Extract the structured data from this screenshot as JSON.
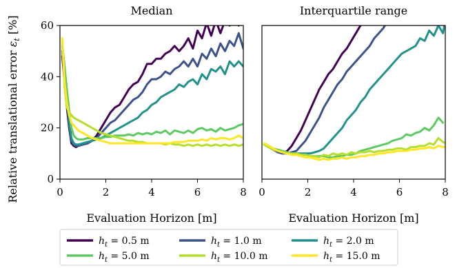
{
  "chart_data": [
    {
      "type": "line",
      "title": "Median",
      "xlabel": "Evaluation Horizon [m]",
      "ylabel": "Relative translational error ε_t [%]",
      "xlim": [
        0,
        8
      ],
      "ylim": [
        0,
        60
      ],
      "xticks": [
        "0",
        "2",
        "4",
        "6",
        "8"
      ],
      "yticks": [
        "0",
        "20",
        "40",
        "60"
      ],
      "series": [
        {
          "name": "h_t = 0.5 m",
          "color": "#440154",
          "x": [
            0.1,
            0.2,
            0.3,
            0.4,
            0.5,
            0.6,
            0.7,
            0.8,
            1.0,
            1.2,
            1.4,
            1.6,
            1.8,
            2.0,
            2.2,
            2.4,
            2.6,
            2.8,
            3.0,
            3.2,
            3.4,
            3.6,
            3.8,
            4.0,
            4.2,
            4.4,
            4.6,
            4.8,
            5.0,
            5.2,
            5.4,
            5.6,
            5.8,
            6.0,
            6.2,
            6.4,
            6.6,
            6.8,
            7.0,
            7.2,
            7.4,
            7.6,
            7.8,
            8.0
          ],
          "y": [
            48,
            38,
            28,
            20,
            14,
            13,
            12.5,
            13,
            13.5,
            14,
            15,
            17,
            20,
            23,
            26,
            28,
            29,
            32,
            35,
            37,
            38,
            41,
            45,
            45,
            47,
            47,
            49,
            50,
            52,
            50,
            52,
            55,
            51,
            58,
            55,
            61,
            56,
            62,
            57,
            62,
            60,
            62,
            60,
            63
          ]
        },
        {
          "name": "h_t = 1.0 m",
          "color": "#3b528b",
          "x": [
            0.1,
            0.2,
            0.3,
            0.4,
            0.5,
            0.6,
            0.7,
            0.8,
            1.0,
            1.2,
            1.4,
            1.6,
            1.8,
            2.0,
            2.2,
            2.4,
            2.6,
            2.8,
            3.0,
            3.2,
            3.4,
            3.6,
            3.8,
            4.0,
            4.2,
            4.4,
            4.6,
            4.8,
            5.0,
            5.2,
            5.4,
            5.6,
            5.8,
            6.0,
            6.2,
            6.4,
            6.6,
            6.8,
            7.0,
            7.2,
            7.4,
            7.6,
            7.8,
            8.0
          ],
          "y": [
            50,
            40,
            30,
            21,
            15,
            13.5,
            13,
            13,
            13.5,
            14,
            15,
            16,
            18,
            20,
            22,
            23,
            25,
            27,
            29,
            31,
            32,
            34,
            37,
            39,
            39,
            40,
            42,
            41,
            43,
            44,
            46,
            44,
            47,
            44,
            49,
            47,
            51,
            48,
            53,
            50,
            54,
            52,
            57,
            51
          ]
        },
        {
          "name": "h_t = 2.0 m",
          "color": "#21918c",
          "x": [
            0.1,
            0.2,
            0.3,
            0.4,
            0.5,
            0.6,
            0.7,
            0.8,
            1.0,
            1.2,
            1.4,
            1.6,
            1.8,
            2.0,
            2.2,
            2.4,
            2.6,
            2.8,
            3.0,
            3.2,
            3.4,
            3.6,
            3.8,
            4.0,
            4.2,
            4.4,
            4.6,
            4.8,
            5.0,
            5.2,
            5.4,
            5.6,
            5.8,
            6.0,
            6.2,
            6.4,
            6.6,
            6.8,
            7.0,
            7.2,
            7.4,
            7.6,
            7.8,
            8.0
          ],
          "y": [
            52,
            42,
            32,
            23,
            16,
            14,
            13.5,
            13.5,
            14,
            14.5,
            15,
            15.5,
            16,
            17,
            18,
            19,
            20,
            21,
            22,
            23,
            24,
            26,
            27,
            29,
            30,
            32,
            33,
            34,
            35,
            37,
            36,
            38,
            39,
            37,
            41,
            39,
            43,
            42,
            44,
            41,
            46,
            44,
            46,
            44
          ]
        },
        {
          "name": "h_t = 5.0 m",
          "color": "#5ec962",
          "x": [
            0.1,
            0.2,
            0.3,
            0.4,
            0.5,
            0.6,
            0.7,
            0.8,
            1.0,
            1.2,
            1.4,
            1.6,
            1.8,
            2.0,
            2.2,
            2.4,
            2.6,
            2.8,
            3.0,
            3.2,
            3.4,
            3.6,
            3.8,
            4.0,
            4.2,
            4.4,
            4.6,
            4.8,
            5.0,
            5.2,
            5.4,
            5.6,
            5.8,
            6.0,
            6.2,
            6.4,
            6.6,
            6.8,
            7.0,
            7.2,
            7.4,
            7.6,
            7.8,
            8.0
          ],
          "y": [
            53,
            44,
            35,
            27,
            20,
            17,
            16,
            15.5,
            15.5,
            16,
            16,
            16,
            16,
            16.5,
            16.5,
            17,
            17,
            17,
            17.5,
            17,
            18,
            17.5,
            18,
            17.5,
            18.5,
            18,
            19,
            17.5,
            19,
            18.5,
            18,
            19,
            18,
            19.5,
            20,
            19,
            19.5,
            18.5,
            20,
            19,
            19.5,
            20,
            21,
            21.5
          ]
        },
        {
          "name": "h_t = 10.0 m",
          "color": "#b5de2b",
          "x": [
            0.1,
            0.2,
            0.3,
            0.4,
            0.5,
            0.6,
            0.7,
            0.8,
            1.0,
            1.2,
            1.4,
            1.6,
            1.8,
            2.0,
            2.2,
            2.4,
            2.6,
            2.8,
            3.0,
            3.2,
            3.4,
            3.6,
            3.8,
            4.0,
            4.2,
            4.4,
            4.6,
            4.8,
            5.0,
            5.2,
            5.4,
            5.6,
            5.8,
            6.0,
            6.2,
            6.4,
            6.6,
            6.8,
            7.0,
            7.2,
            7.4,
            7.6,
            7.8,
            8.0
          ],
          "y": [
            54,
            36,
            28,
            26,
            25,
            24,
            23.5,
            23,
            22,
            21,
            20,
            19,
            18,
            17.5,
            17,
            16.5,
            16,
            15.5,
            15,
            15,
            14.5,
            14.5,
            14,
            14,
            14,
            14,
            13.5,
            14,
            13.5,
            13.5,
            13,
            13.5,
            13,
            13.5,
            13,
            13.5,
            13,
            13.5,
            13,
            13.5,
            13,
            13.5,
            13,
            13.5
          ]
        },
        {
          "name": "h_t = 15.0 m",
          "color": "#fde725",
          "x": [
            0.1,
            0.2,
            0.3,
            0.4,
            0.5,
            0.6,
            0.7,
            0.8,
            1.0,
            1.2,
            1.4,
            1.6,
            1.8,
            2.0,
            2.2,
            2.4,
            2.6,
            2.8,
            3.0,
            3.2,
            3.4,
            3.6,
            3.8,
            4.0,
            4.2,
            4.4,
            4.6,
            4.8,
            5.0,
            5.2,
            5.4,
            5.6,
            5.8,
            6.0,
            6.2,
            6.4,
            6.6,
            6.8,
            7.0,
            7.2,
            7.4,
            7.6,
            7.8,
            8.0
          ],
          "y": [
            55,
            38,
            30,
            25,
            22,
            21,
            20,
            19,
            18,
            17,
            16,
            15.5,
            15,
            14.5,
            14,
            14,
            14,
            14,
            14,
            14,
            14,
            14,
            14,
            14,
            14,
            14,
            14,
            14,
            14.5,
            14.5,
            14.5,
            15,
            15,
            15,
            15.5,
            15,
            16,
            15.5,
            16,
            16,
            15.5,
            16,
            17,
            16
          ]
        }
      ]
    },
    {
      "type": "line",
      "title": "Interquartile range",
      "xlabel": "Evaluation Horizon [m]",
      "ylabel": "",
      "xlim": [
        0,
        8
      ],
      "ylim": [
        0,
        60
      ],
      "xticks": [
        "0",
        "2",
        "4",
        "6",
        "8"
      ],
      "yticks": [],
      "series": [
        {
          "name": "h_t = 0.5 m",
          "color": "#440154",
          "x": [
            0.1,
            0.3,
            0.5,
            0.7,
            0.9,
            1.1,
            1.3,
            1.5,
            1.7,
            1.9,
            2.1,
            2.3,
            2.5,
            2.7,
            2.9,
            3.1,
            3.3,
            3.5,
            3.7,
            3.9,
            4.1,
            4.3,
            4.5
          ],
          "y": [
            13.5,
            12.5,
            11.5,
            10.5,
            10,
            11,
            13,
            16,
            19,
            23,
            27,
            31,
            35,
            38,
            41,
            43,
            46,
            49,
            51,
            54,
            57,
            60,
            62
          ]
        },
        {
          "name": "h_t = 1.0 m",
          "color": "#3b528b",
          "x": [
            0.1,
            0.3,
            0.5,
            0.7,
            0.9,
            1.1,
            1.3,
            1.5,
            1.7,
            1.9,
            2.1,
            2.3,
            2.5,
            2.7,
            2.9,
            3.1,
            3.3,
            3.5,
            3.7,
            3.9,
            4.1,
            4.3,
            4.5,
            4.7,
            4.9,
            5.1,
            5.3,
            5.5
          ],
          "y": [
            13.5,
            12.5,
            11.5,
            10.5,
            10,
            10,
            10.5,
            11,
            13,
            15,
            18,
            21,
            24,
            28,
            31,
            34,
            37,
            39,
            42,
            44,
            46,
            48,
            50,
            52,
            55,
            57,
            59,
            62
          ]
        },
        {
          "name": "h_t = 2.0 m",
          "color": "#21918c",
          "x": [
            0.1,
            0.3,
            0.5,
            0.7,
            0.9,
            1.1,
            1.3,
            1.5,
            1.7,
            1.9,
            2.1,
            2.3,
            2.5,
            2.7,
            2.9,
            3.1,
            3.3,
            3.5,
            3.7,
            3.9,
            4.1,
            4.3,
            4.5,
            4.7,
            4.9,
            5.1,
            5.3,
            5.5,
            5.7,
            5.9,
            6.1,
            6.3,
            6.5,
            6.7,
            6.9,
            7.1,
            7.3,
            7.5,
            7.7,
            7.9,
            8.0
          ],
          "y": [
            13.5,
            12.5,
            11.5,
            11,
            10.5,
            10,
            10,
            10,
            10,
            10,
            10,
            10.5,
            11,
            12,
            14,
            16,
            18,
            20,
            23,
            25,
            27,
            30,
            32,
            35,
            37,
            39,
            41,
            43,
            45,
            47,
            49,
            50,
            51,
            52,
            55,
            54,
            58,
            56,
            60,
            57,
            62
          ]
        },
        {
          "name": "h_t = 5.0 m",
          "color": "#5ec962",
          "x": [
            0.1,
            0.3,
            0.5,
            0.7,
            0.9,
            1.1,
            1.3,
            1.5,
            1.7,
            1.9,
            2.1,
            2.3,
            2.5,
            2.7,
            2.9,
            3.1,
            3.3,
            3.5,
            3.7,
            3.9,
            4.1,
            4.3,
            4.5,
            4.7,
            4.9,
            5.1,
            5.3,
            5.5,
            5.7,
            5.9,
            6.1,
            6.3,
            6.5,
            6.7,
            6.9,
            7.1,
            7.3,
            7.5,
            7.7,
            7.9
          ],
          "y": [
            13.5,
            12.5,
            12,
            11.5,
            11,
            10.5,
            10,
            10,
            9.5,
            9.5,
            9,
            9,
            9,
            9,
            8.5,
            8.5,
            9,
            9,
            9.5,
            9.5,
            10,
            11,
            11.5,
            12,
            12.5,
            13,
            13.5,
            14,
            15,
            15.5,
            16,
            17.5,
            17,
            18,
            18.5,
            20,
            19,
            21,
            24,
            22
          ]
        },
        {
          "name": "h_t = 10.0 m",
          "color": "#b5de2b",
          "x": [
            0.1,
            0.3,
            0.5,
            0.7,
            0.9,
            1.1,
            1.3,
            1.5,
            1.7,
            1.9,
            2.1,
            2.3,
            2.5,
            2.7,
            2.9,
            3.1,
            3.3,
            3.5,
            3.7,
            3.9,
            4.1,
            4.3,
            4.5,
            4.7,
            4.9,
            5.1,
            5.3,
            5.5,
            5.7,
            5.9,
            6.1,
            6.3,
            6.5,
            6.7,
            6.9,
            7.1,
            7.3,
            7.5,
            7.7,
            7.9,
            8.0
          ],
          "y": [
            13.5,
            12.5,
            11.5,
            11,
            10.5,
            10,
            10,
            10,
            9.5,
            9.5,
            9,
            9,
            8.5,
            9.5,
            9,
            10,
            9.5,
            10,
            9.5,
            10.5,
            10,
            10.5,
            10.5,
            11,
            10.5,
            11,
            11,
            11.5,
            11.5,
            12,
            12,
            11.5,
            12.5,
            12.5,
            13,
            13,
            14,
            13.5,
            16,
            14.5,
            14
          ]
        },
        {
          "name": "h_t = 15.0 m",
          "color": "#fde725",
          "x": [
            0.1,
            0.3,
            0.5,
            0.7,
            0.9,
            1.1,
            1.3,
            1.5,
            1.7,
            1.9,
            2.1,
            2.3,
            2.5,
            2.7,
            2.9,
            3.1,
            3.3,
            3.5,
            3.7,
            3.9,
            4.1,
            4.3,
            4.5,
            4.7,
            4.9,
            5.1,
            5.3,
            5.5,
            5.7,
            5.9,
            6.1,
            6.3,
            6.5,
            6.7,
            6.9,
            7.1,
            7.3,
            7.5,
            7.7,
            7.9,
            8.0
          ],
          "y": [
            14,
            13,
            12,
            11,
            10.5,
            10,
            9.5,
            9.5,
            9,
            8.5,
            8.5,
            8,
            7.5,
            8,
            7.5,
            8,
            8,
            8.5,
            8,
            8.5,
            8.5,
            9,
            9,
            9.5,
            9.5,
            10,
            10,
            10.5,
            10.5,
            11,
            11,
            11,
            11.5,
            11.5,
            12,
            12,
            12.5,
            12,
            13,
            12.5,
            12.5
          ]
        }
      ]
    }
  ],
  "legend": {
    "placement": "bottom-center",
    "entries": [
      {
        "label": "h_t = 0.5 m",
        "color": "#440154"
      },
      {
        "label": "h_t = 1.0 m",
        "color": "#3b528b"
      },
      {
        "label": "h_t = 2.0 m",
        "color": "#21918c"
      },
      {
        "label": "h_t = 5.0 m",
        "color": "#5ec962"
      },
      {
        "label": "h_t = 10.0 m",
        "color": "#b5de2b"
      },
      {
        "label": "h_t = 15.0 m",
        "color": "#fde725"
      }
    ]
  }
}
